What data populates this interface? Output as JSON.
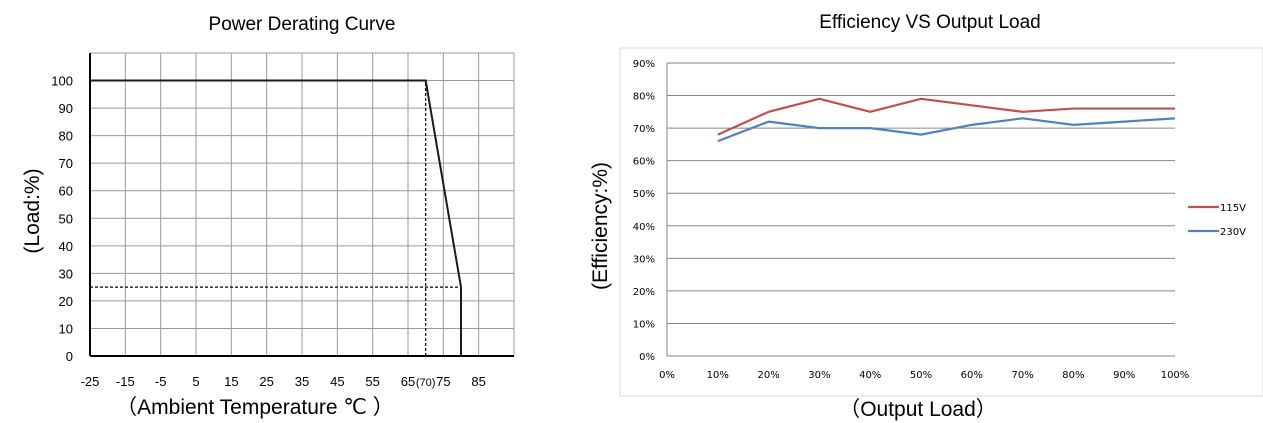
{
  "chart_data": [
    {
      "type": "line",
      "title": "Power Derating Curve",
      "xlabel": "（Ambient Temperature ℃ ）",
      "ylabel": "(Load:%)",
      "x_ticks": [
        "-25",
        "-15",
        "-5",
        "5",
        "15",
        "25",
        "35",
        "45",
        "55",
        "65",
        "(70)",
        "75",
        "85"
      ],
      "y_ticks": [
        "0",
        "10",
        "20",
        "30",
        "40",
        "50",
        "60",
        "70",
        "80",
        "90",
        "100"
      ],
      "xlim": [
        -25,
        95
      ],
      "ylim": [
        0,
        110
      ],
      "grid": true,
      "series": [
        {
          "x": [
            -25,
            70,
            80,
            80
          ],
          "y": [
            100,
            100,
            25,
            0
          ]
        }
      ],
      "reference_lines": [
        {
          "style": "dashed",
          "x": [
            70,
            70
          ],
          "y": [
            0,
            100
          ]
        },
        {
          "style": "dashed",
          "x": [
            -25,
            80
          ],
          "y": [
            25,
            25
          ]
        }
      ],
      "colors": {
        "line": "#1a1a1a",
        "grid": "#9a9a9a"
      }
    },
    {
      "type": "line",
      "title": "Efficiency VS Output Load",
      "xlabel": "（Output Load）",
      "ylabel": "(Efficiency:%)",
      "categories": [
        "0%",
        "10%",
        "20%",
        "30%",
        "40%",
        "50%",
        "60%",
        "70%",
        "80%",
        "90%",
        "100%"
      ],
      "y_ticks": [
        "0%",
        "10%",
        "20%",
        "30%",
        "40%",
        "50%",
        "60%",
        "70%",
        "80%",
        "90%"
      ],
      "ylim": [
        0,
        90
      ],
      "grid": true,
      "legend": "right",
      "series": [
        {
          "name": "115V",
          "color": "#c0504d",
          "x": [
            10,
            20,
            30,
            40,
            50,
            60,
            70,
            80,
            90,
            100
          ],
          "y": [
            68,
            75,
            79,
            75,
            79,
            77,
            75,
            76,
            76,
            76
          ]
        },
        {
          "name": "230V",
          "color": "#4f81bd",
          "x": [
            10,
            20,
            30,
            40,
            50,
            60,
            70,
            80,
            90,
            100
          ],
          "y": [
            66,
            72,
            70,
            70,
            68,
            71,
            73,
            71,
            72,
            73
          ]
        }
      ]
    }
  ]
}
